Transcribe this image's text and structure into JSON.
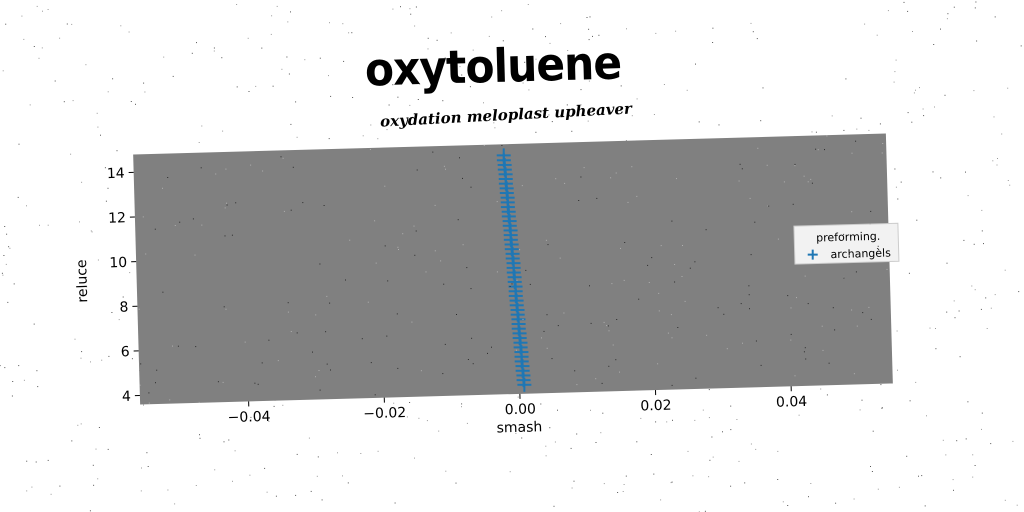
{
  "chart_data": {
    "type": "scatter",
    "title": "oxytoluene",
    "subtitle": "oxydation meloplast upheaver",
    "xlabel": "smash",
    "ylabel": "reluce",
    "xlim": [
      -0.056,
      0.055
    ],
    "ylim": [
      3.6,
      14.8
    ],
    "x_ticks": [
      -0.04,
      -0.02,
      0.0,
      0.02,
      0.04
    ],
    "x_tick_labels": [
      "−0.04",
      "−0.02",
      "0.00",
      "0.02",
      "0.04"
    ],
    "y_ticks": [
      4,
      6,
      8,
      10,
      12,
      14
    ],
    "y_tick_labels": [
      "4",
      "6",
      "8",
      "10",
      "12",
      "14"
    ],
    "grid": false,
    "plot_background": "#808080",
    "legend": {
      "placement": "center-right",
      "title": "preforming.",
      "entries": [
        "archangèls"
      ]
    },
    "series": [
      {
        "name": "archangèls",
        "marker": "+",
        "color": "#1f77b4",
        "x": [
          0.0007,
          0.0006,
          0.0006,
          0.0005,
          0.0005,
          0.0004,
          0.0004,
          0.0004,
          0.0003,
          0.0003,
          0.0002,
          0.0002,
          0.0001,
          0.0001,
          0.0001,
          0.0,
          0.0,
          -0.0001,
          -0.0001,
          -0.0002,
          -0.0002,
          -0.0002,
          -0.0003,
          -0.0003,
          -0.0004,
          -0.0004,
          -0.0004,
          -0.0005,
          -0.0005,
          -0.0006,
          -0.0006,
          -0.0007,
          -0.0007,
          -0.0007,
          -0.0008,
          -0.0008,
          -0.0009,
          -0.0009,
          -0.001,
          -0.001,
          -0.001,
          -0.0011,
          -0.0011,
          -0.0012,
          -0.0012,
          -0.0012,
          -0.0013,
          -0.0013,
          -0.0014,
          -0.0014
        ],
        "y": [
          4.0,
          4.21,
          4.42,
          4.63,
          4.84,
          5.05,
          5.26,
          5.47,
          5.68,
          5.89,
          6.1,
          6.31,
          6.52,
          6.73,
          6.94,
          7.15,
          7.36,
          7.57,
          7.78,
          7.99,
          8.2,
          8.41,
          8.62,
          8.83,
          9.04,
          9.25,
          9.46,
          9.67,
          9.88,
          10.09,
          10.3,
          10.51,
          10.72,
          10.93,
          11.14,
          11.35,
          11.56,
          11.77,
          11.98,
          12.19,
          12.4,
          12.61,
          12.82,
          13.03,
          13.24,
          13.45,
          13.66,
          13.87,
          14.08,
          14.3
        ]
      }
    ]
  }
}
